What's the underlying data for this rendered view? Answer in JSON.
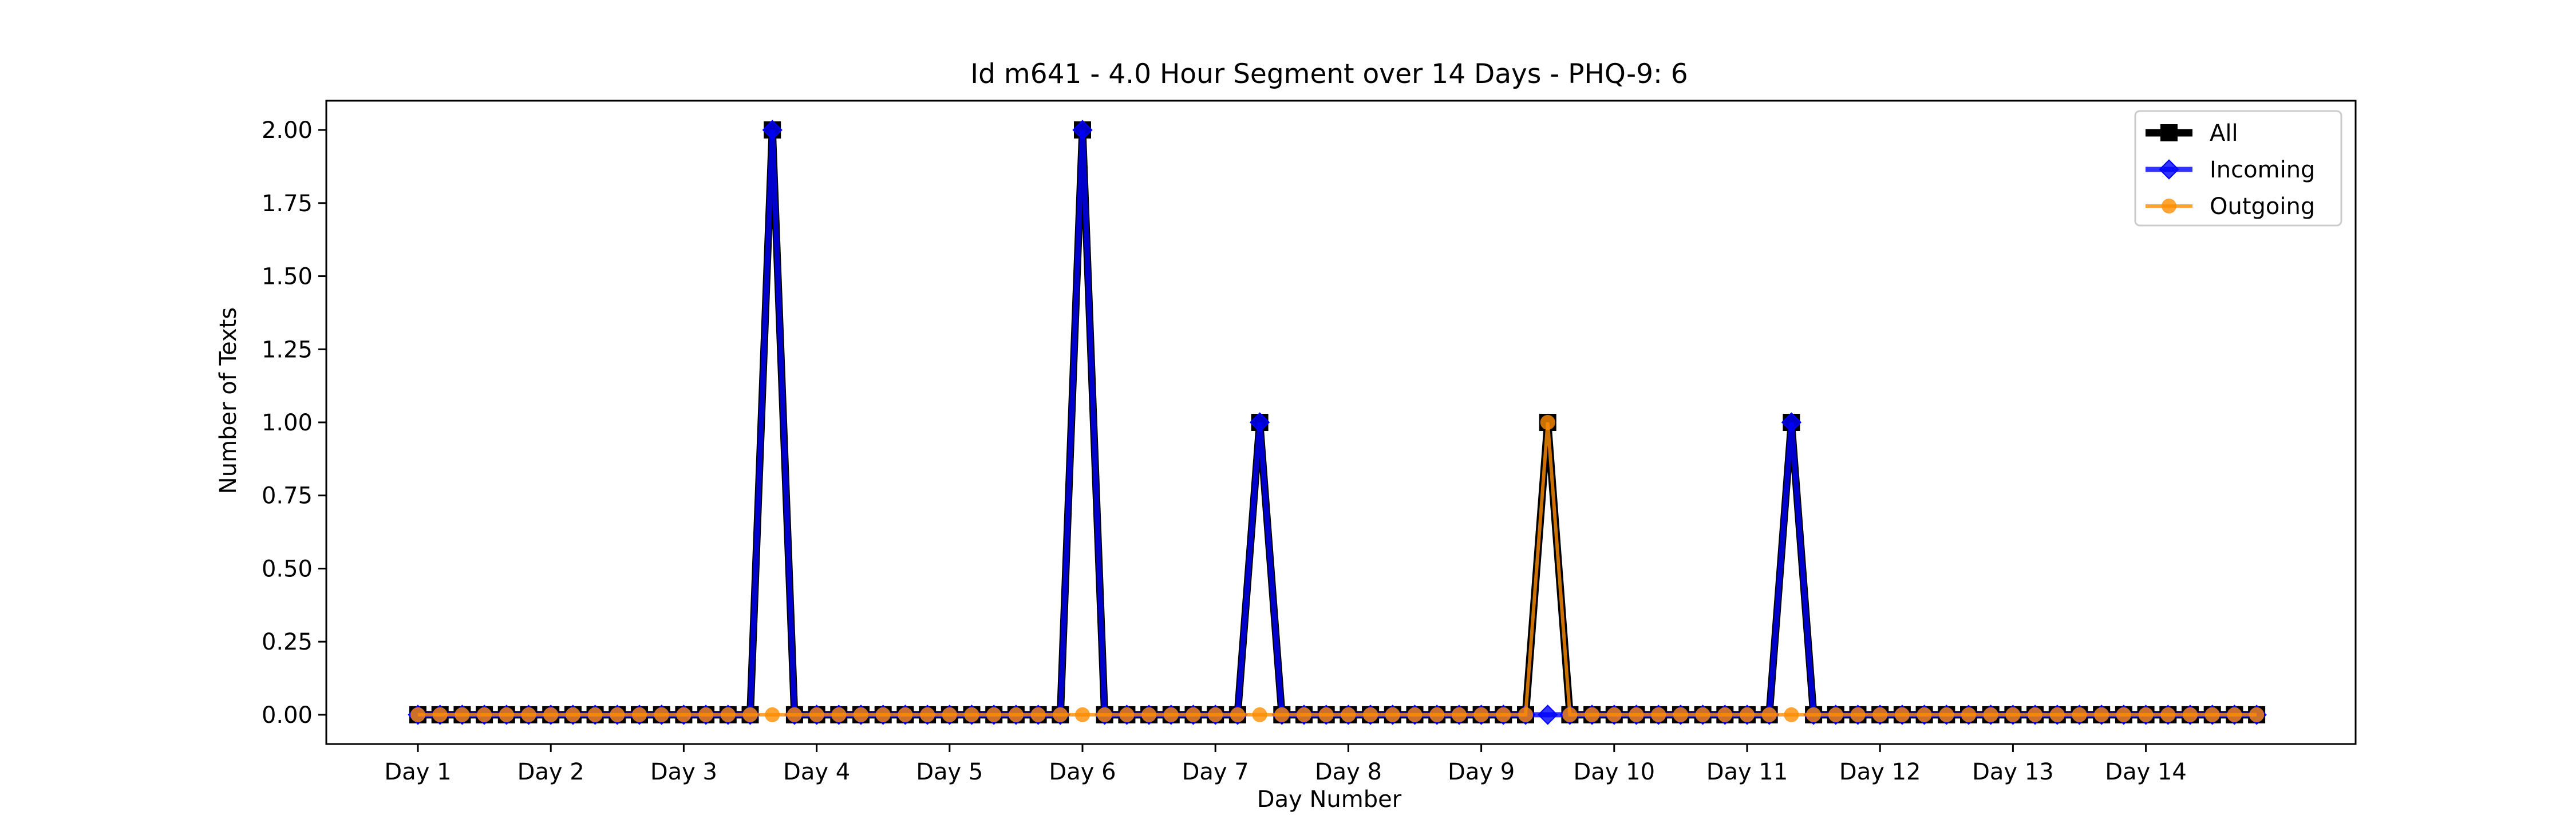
{
  "chart_data": {
    "type": "line",
    "title": "Id m641 - 4.0 Hour Segment over 14 Days - PHQ-9: 6",
    "xlabel": "Day Number",
    "ylabel": "Number of Texts",
    "categories": [
      "Day 1",
      "Day 2",
      "Day 3",
      "Day 4",
      "Day 5",
      "Day 6",
      "Day 7",
      "Day 8",
      "Day 9",
      "Day 10",
      "Day 11",
      "Day 12",
      "Day 13",
      "Day 14"
    ],
    "segments_per_day": 6,
    "ylim": [
      -0.1,
      2.1
    ],
    "yticks": [
      "0.00",
      "0.25",
      "0.50",
      "0.75",
      "1.00",
      "1.25",
      "1.50",
      "1.75",
      "2.00"
    ],
    "grid": false,
    "legend_position": "top-right",
    "series": [
      {
        "name": "All",
        "color": "#000000",
        "marker": "square",
        "nonzero": [
          {
            "index": 16,
            "value": 2
          },
          {
            "index": 30,
            "value": 2
          },
          {
            "index": 38,
            "value": 1
          },
          {
            "index": 51,
            "value": 1
          },
          {
            "index": 62,
            "value": 1
          }
        ]
      },
      {
        "name": "Incoming",
        "color": "#0000ff",
        "marker": "diamond",
        "nonzero": [
          {
            "index": 16,
            "value": 2
          },
          {
            "index": 30,
            "value": 2
          },
          {
            "index": 38,
            "value": 1
          },
          {
            "index": 62,
            "value": 1
          }
        ]
      },
      {
        "name": "Outgoing",
        "color": "#ff8c00",
        "marker": "circle",
        "nonzero": [
          {
            "index": 51,
            "value": 1
          }
        ]
      }
    ],
    "num_points": 84
  }
}
